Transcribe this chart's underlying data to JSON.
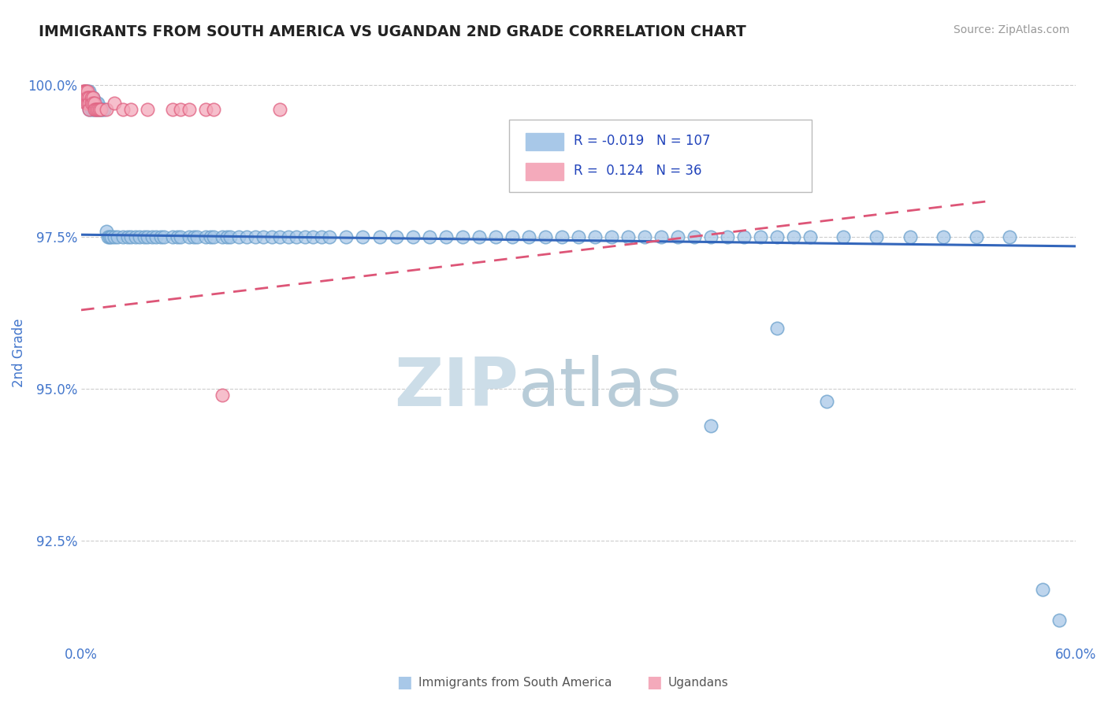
{
  "title": "IMMIGRANTS FROM SOUTH AMERICA VS UGANDAN 2ND GRADE CORRELATION CHART",
  "source": "Source: ZipAtlas.com",
  "xlabel_blue": "Immigrants from South America",
  "xlabel_pink": "Ugandans",
  "ylabel": "2nd Grade",
  "xlim": [
    0.0,
    0.6
  ],
  "ylim": [
    0.908,
    1.004
  ],
  "yticks": [
    0.925,
    0.95,
    0.975,
    1.0
  ],
  "ytick_labels": [
    "92.5%",
    "95.0%",
    "97.5%",
    "100.0%"
  ],
  "xticks": [
    0.0,
    0.1,
    0.2,
    0.3,
    0.4,
    0.5,
    0.6
  ],
  "xtick_labels": [
    "0.0%",
    "",
    "",
    "",
    "",
    "",
    "60.0%"
  ],
  "blue_R": -0.019,
  "blue_N": 107,
  "pink_R": 0.124,
  "pink_N": 36,
  "blue_color": "#a8c8e8",
  "blue_edge": "#6aa0cc",
  "pink_color": "#f4aabb",
  "pink_edge": "#e06080",
  "blue_line_color": "#3366bb",
  "pink_line_color": "#dd5577",
  "watermark_color": "#ccdde8",
  "blue_trend_x": [
    0.0,
    0.6
  ],
  "blue_trend_y": [
    0.9754,
    0.9735
  ],
  "pink_trend_x": [
    0.0,
    0.55
  ],
  "pink_trend_y": [
    0.963,
    0.981
  ],
  "blue_x": [
    0.002,
    0.003,
    0.003,
    0.004,
    0.004,
    0.004,
    0.005,
    0.005,
    0.005,
    0.005,
    0.006,
    0.006,
    0.006,
    0.007,
    0.007,
    0.007,
    0.008,
    0.008,
    0.009,
    0.009,
    0.01,
    0.01,
    0.011,
    0.012,
    0.013,
    0.014,
    0.015,
    0.016,
    0.017,
    0.018,
    0.02,
    0.022,
    0.025,
    0.028,
    0.03,
    0.033,
    0.035,
    0.038,
    0.04,
    0.043,
    0.045,
    0.048,
    0.05,
    0.055,
    0.058,
    0.06,
    0.065,
    0.068,
    0.07,
    0.075,
    0.078,
    0.08,
    0.085,
    0.088,
    0.09,
    0.095,
    0.1,
    0.105,
    0.11,
    0.115,
    0.12,
    0.125,
    0.13,
    0.135,
    0.14,
    0.145,
    0.15,
    0.16,
    0.17,
    0.18,
    0.19,
    0.2,
    0.21,
    0.22,
    0.23,
    0.24,
    0.25,
    0.26,
    0.27,
    0.28,
    0.29,
    0.3,
    0.31,
    0.32,
    0.33,
    0.34,
    0.35,
    0.36,
    0.37,
    0.38,
    0.4,
    0.42,
    0.44,
    0.46,
    0.48,
    0.5,
    0.52,
    0.54,
    0.56,
    0.42,
    0.45,
    0.38,
    0.58,
    0.59,
    0.39,
    0.41,
    0.43
  ],
  "blue_y": [
    0.999,
    0.999,
    0.998,
    0.999,
    0.998,
    0.997,
    0.999,
    0.998,
    0.997,
    0.996,
    0.998,
    0.997,
    0.996,
    0.998,
    0.997,
    0.996,
    0.997,
    0.996,
    0.997,
    0.996,
    0.997,
    0.996,
    0.996,
    0.996,
    0.996,
    0.996,
    0.976,
    0.975,
    0.975,
    0.975,
    0.975,
    0.975,
    0.975,
    0.975,
    0.975,
    0.975,
    0.975,
    0.975,
    0.975,
    0.975,
    0.975,
    0.975,
    0.975,
    0.975,
    0.975,
    0.975,
    0.975,
    0.975,
    0.975,
    0.975,
    0.975,
    0.975,
    0.975,
    0.975,
    0.975,
    0.975,
    0.975,
    0.975,
    0.975,
    0.975,
    0.975,
    0.975,
    0.975,
    0.975,
    0.975,
    0.975,
    0.975,
    0.975,
    0.975,
    0.975,
    0.975,
    0.975,
    0.975,
    0.975,
    0.975,
    0.975,
    0.975,
    0.975,
    0.975,
    0.975,
    0.975,
    0.975,
    0.975,
    0.975,
    0.975,
    0.975,
    0.975,
    0.975,
    0.975,
    0.975,
    0.975,
    0.975,
    0.975,
    0.975,
    0.975,
    0.975,
    0.975,
    0.975,
    0.975,
    0.96,
    0.948,
    0.944,
    0.917,
    0.912,
    0.975,
    0.975,
    0.975
  ],
  "pink_x": [
    0.001,
    0.002,
    0.002,
    0.002,
    0.003,
    0.003,
    0.003,
    0.003,
    0.004,
    0.004,
    0.004,
    0.005,
    0.005,
    0.005,
    0.006,
    0.006,
    0.007,
    0.007,
    0.008,
    0.008,
    0.009,
    0.01,
    0.011,
    0.012,
    0.015,
    0.02,
    0.025,
    0.03,
    0.04,
    0.055,
    0.06,
    0.065,
    0.075,
    0.08,
    0.085,
    0.12
  ],
  "pink_y": [
    0.999,
    0.999,
    0.999,
    0.998,
    0.999,
    0.999,
    0.998,
    0.997,
    0.999,
    0.998,
    0.997,
    0.998,
    0.997,
    0.996,
    0.998,
    0.997,
    0.998,
    0.997,
    0.997,
    0.996,
    0.996,
    0.996,
    0.996,
    0.996,
    0.996,
    0.997,
    0.996,
    0.996,
    0.996,
    0.996,
    0.996,
    0.996,
    0.996,
    0.996,
    0.949,
    0.996
  ]
}
